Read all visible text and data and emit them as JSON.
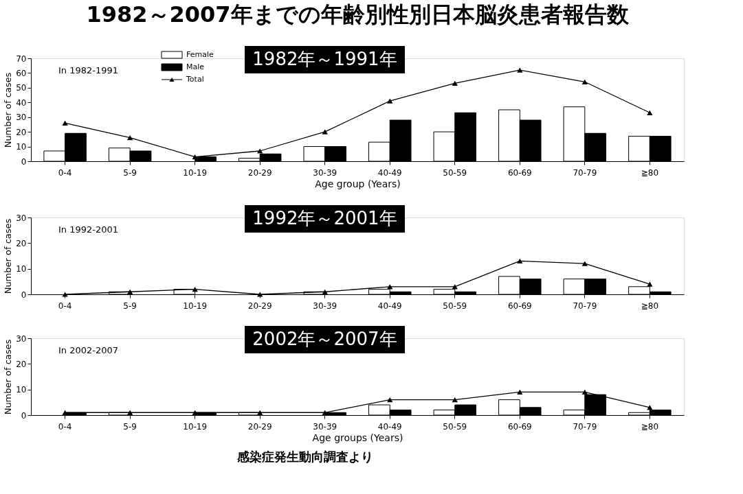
{
  "chart_data": [
    {
      "type": "bar",
      "title": "1982～2007年までの年齢別性別日本脳炎患者報告数",
      "subtitle": "1982年～1991年",
      "xlabel": "Age group (Years)",
      "ylabel": "Number of cases",
      "categories": [
        "0-4",
        "5-9",
        "10-19",
        "20-29",
        "30-39",
        "40-49",
        "50-59",
        "60-69",
        "70-79",
        "≧80"
      ],
      "series": [
        {
          "name": "Female",
          "color": "#ffffff",
          "values": [
            7,
            9,
            0,
            2,
            10,
            13,
            20,
            35,
            37,
            17
          ]
        },
        {
          "name": "Male",
          "color": "#000000",
          "values": [
            19,
            7,
            3,
            5,
            10,
            28,
            33,
            28,
            19,
            17
          ]
        },
        {
          "name": "Total",
          "type": "line",
          "color": "#000000",
          "values": [
            26,
            16,
            3,
            7,
            20,
            41,
            53,
            62,
            54,
            33
          ]
        }
      ],
      "ylim": [
        0,
        70
      ],
      "yticks": [
        0,
        10,
        20,
        30,
        40,
        50,
        60,
        70
      ],
      "grid": false,
      "legend": "top left",
      "marker": "triangle",
      "annotations": [
        "In 1982-1991"
      ]
    },
    {
      "type": "bar",
      "subtitle": "1992年～2001年",
      "ylabel": "Number of cases",
      "categories": [
        "0-4",
        "5-9",
        "10-19",
        "20-29",
        "30-39",
        "40-49",
        "50-59",
        "60-69",
        "70-79",
        "≧80"
      ],
      "series": [
        {
          "color": "#ffffff",
          "values": [
            0,
            1,
            2,
            0,
            1,
            2,
            2,
            7,
            6,
            3
          ]
        },
        {
          "color": "#000000",
          "values": [
            0,
            0,
            0,
            0,
            0,
            1,
            1,
            6,
            6,
            1
          ]
        },
        {
          "type": "line",
          "color": "#000000",
          "values": [
            0,
            1,
            2,
            0,
            1,
            3,
            3,
            13,
            12,
            4
          ]
        }
      ],
      "ylim": [
        0,
        30
      ],
      "yticks": [
        0,
        10,
        20,
        30
      ],
      "grid": false,
      "marker": "triangle",
      "annotations": [
        "In 1992-2001"
      ]
    },
    {
      "type": "bar",
      "subtitle": "2002年～2007年",
      "xlabel": "Age groups (Years)",
      "ylabel": "Number of cases",
      "categories": [
        "0-4",
        "5-9",
        "10-19",
        "20-29",
        "30-39",
        "40-49",
        "50-59",
        "60-69",
        "70-79",
        "≧80"
      ],
      "series": [
        {
          "color": "#ffffff",
          "values": [
            0,
            1,
            0,
            1,
            0,
            4,
            2,
            6,
            2,
            1
          ]
        },
        {
          "color": "#000000",
          "values": [
            1,
            0,
            1,
            0,
            1,
            2,
            4,
            3,
            8,
            2
          ]
        },
        {
          "type": "line",
          "color": "#000000",
          "values": [
            1,
            1,
            1,
            1,
            1,
            6,
            6,
            9,
            9,
            3
          ]
        }
      ],
      "ylim": [
        0,
        30
      ],
      "yticks": [
        0,
        10,
        20,
        30
      ],
      "grid": false,
      "marker": "triangle",
      "annotations": [
        "In 2002-2007",
        "感染症発生動向調査より"
      ]
    }
  ]
}
